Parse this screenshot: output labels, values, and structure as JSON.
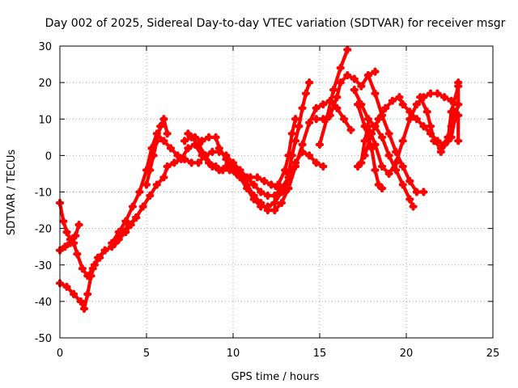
{
  "chart_data": {
    "type": "scatter",
    "title": "Day 002 of 2025, Sidereal Day-to-day VTEC variation (SDTVAR) for receiver msgr",
    "xlabel": "GPS time / hours",
    "ylabel": "SDTVAR / TECUs",
    "xlim": [
      0,
      25
    ],
    "ylim": [
      -50,
      30
    ],
    "x_ticks": [
      "0",
      "5",
      "10",
      "15",
      "20",
      "25"
    ],
    "y_ticks": [
      "-50",
      "-40",
      "-30",
      "-20",
      "-10",
      "0",
      "10",
      "20",
      "30"
    ],
    "grid": true,
    "legend": "none",
    "marker": "plus",
    "color": "#ff0000",
    "series": [
      {
        "points": [
          [
            0.0,
            -13
          ],
          [
            0.2,
            -18
          ],
          [
            0.4,
            -21
          ],
          [
            0.6,
            -23
          ],
          [
            0.8,
            -24
          ],
          [
            1.0,
            -27
          ],
          [
            1.3,
            -31
          ],
          [
            1.6,
            -33
          ],
          [
            1.9,
            -31
          ],
          [
            2.2,
            -28
          ],
          [
            2.6,
            -26
          ],
          [
            3.0,
            -25
          ],
          [
            3.4,
            -23
          ],
          [
            3.8,
            -21
          ],
          [
            4.1,
            -19
          ],
          [
            4.4,
            -17
          ]
        ]
      },
      {
        "points": [
          [
            0.0,
            -26
          ],
          [
            0.3,
            -25
          ],
          [
            0.6,
            -24
          ],
          [
            0.9,
            -22
          ],
          [
            1.1,
            -19
          ]
        ]
      },
      {
        "points": [
          [
            0.0,
            -35
          ],
          [
            0.4,
            -36
          ],
          [
            0.8,
            -38
          ],
          [
            1.2,
            -40
          ],
          [
            1.4,
            -42
          ],
          [
            1.6,
            -38
          ],
          [
            1.8,
            -33
          ],
          [
            2.0,
            -30
          ],
          [
            2.3,
            -28
          ],
          [
            2.6,
            -26
          ]
        ]
      },
      {
        "points": [
          [
            3.0,
            -24
          ],
          [
            3.4,
            -21
          ],
          [
            3.8,
            -18
          ],
          [
            4.2,
            -14
          ],
          [
            4.6,
            -10
          ],
          [
            5.0,
            -4
          ],
          [
            5.3,
            2
          ],
          [
            5.6,
            6
          ],
          [
            6.0,
            4
          ],
          [
            6.4,
            2
          ],
          [
            6.8,
            0
          ],
          [
            7.2,
            -1
          ],
          [
            7.6,
            -2
          ],
          [
            8.0,
            -2
          ],
          [
            8.4,
            0
          ],
          [
            8.8,
            1
          ],
          [
            9.2,
            1
          ],
          [
            9.6,
            0
          ],
          [
            10.0,
            -2
          ],
          [
            10.4,
            -4
          ],
          [
            10.8,
            -6
          ],
          [
            11.2,
            -8
          ],
          [
            11.6,
            -10
          ],
          [
            12.0,
            -11
          ],
          [
            12.4,
            -11
          ],
          [
            12.8,
            -9
          ],
          [
            13.2,
            -6
          ],
          [
            13.6,
            -2
          ],
          [
            14.0,
            1
          ],
          [
            14.4,
            0
          ],
          [
            14.8,
            -2
          ],
          [
            15.2,
            -3
          ]
        ]
      },
      {
        "points": [
          [
            3.2,
            -24
          ],
          [
            3.6,
            -21
          ],
          [
            4.0,
            -19
          ],
          [
            4.4,
            -17
          ],
          [
            4.8,
            -14
          ],
          [
            5.2,
            -11
          ],
          [
            5.6,
            -8
          ],
          [
            6.0,
            -6
          ],
          [
            6.2,
            -3
          ],
          [
            6.6,
            -2
          ],
          [
            7.0,
            -1
          ],
          [
            7.4,
            2
          ],
          [
            7.8,
            3
          ],
          [
            8.2,
            0
          ],
          [
            8.6,
            -2
          ],
          [
            9.0,
            -3
          ],
          [
            9.4,
            -4
          ],
          [
            9.8,
            -4
          ],
          [
            10.2,
            -5
          ],
          [
            10.6,
            -6
          ],
          [
            11.0,
            -6
          ],
          [
            11.4,
            -6
          ],
          [
            11.8,
            -7
          ],
          [
            12.2,
            -8
          ],
          [
            12.6,
            -9
          ],
          [
            13.0,
            -10
          ]
        ]
      },
      {
        "points": [
          [
            5.0,
            -8
          ],
          [
            5.2,
            -4
          ],
          [
            5.4,
            0
          ],
          [
            5.6,
            4
          ],
          [
            5.8,
            8
          ],
          [
            6.0,
            10
          ],
          [
            6.2,
            6
          ]
        ]
      },
      {
        "points": [
          [
            7.2,
            4
          ],
          [
            7.6,
            5
          ],
          [
            8.0,
            3
          ],
          [
            8.4,
            0
          ],
          [
            8.8,
            -3
          ],
          [
            9.2,
            -4
          ],
          [
            9.6,
            -3
          ],
          [
            10.0,
            -3
          ],
          [
            10.4,
            -5
          ],
          [
            10.8,
            -8
          ],
          [
            11.2,
            -11
          ],
          [
            11.6,
            -13
          ],
          [
            12.0,
            -15
          ],
          [
            12.4,
            -15
          ],
          [
            12.8,
            -13
          ],
          [
            13.2,
            -9
          ],
          [
            13.6,
            -3
          ],
          [
            14.0,
            3
          ],
          [
            14.4,
            9
          ],
          [
            14.8,
            13
          ],
          [
            15.2,
            14
          ],
          [
            15.6,
            15
          ],
          [
            16.0,
            13
          ],
          [
            16.4,
            10
          ],
          [
            16.8,
            7
          ]
        ]
      },
      {
        "points": [
          [
            7.4,
            6
          ],
          [
            7.8,
            5
          ],
          [
            8.2,
            4
          ],
          [
            8.6,
            5
          ],
          [
            9.0,
            5
          ],
          [
            9.2,
            2
          ],
          [
            9.6,
            -1
          ],
          [
            10.0,
            -4
          ],
          [
            10.4,
            -6
          ],
          [
            10.8,
            -9
          ],
          [
            11.2,
            -12
          ],
          [
            11.6,
            -14
          ],
          [
            12.0,
            -14
          ],
          [
            12.4,
            -13
          ],
          [
            12.8,
            -10
          ]
        ]
      },
      {
        "points": [
          [
            13.0,
            -10
          ],
          [
            13.2,
            -5
          ],
          [
            13.4,
            0
          ],
          [
            13.6,
            4
          ],
          [
            13.8,
            8
          ],
          [
            14.0,
            13
          ],
          [
            14.2,
            17
          ],
          [
            14.4,
            20
          ]
        ]
      },
      {
        "points": [
          [
            12.6,
            -8
          ],
          [
            13.0,
            -4
          ],
          [
            13.2,
            0
          ],
          [
            13.4,
            6
          ],
          [
            13.6,
            10
          ]
        ]
      },
      {
        "points": [
          [
            15.0,
            3
          ],
          [
            15.4,
            10
          ],
          [
            15.8,
            18
          ],
          [
            16.2,
            24
          ],
          [
            16.6,
            29
          ]
        ]
      },
      {
        "points": [
          [
            14.8,
            10
          ],
          [
            15.2,
            10
          ],
          [
            15.6,
            11
          ],
          [
            16.0,
            16
          ],
          [
            16.2,
            20
          ],
          [
            16.6,
            22
          ],
          [
            17.0,
            21
          ],
          [
            17.4,
            19
          ],
          [
            17.8,
            22
          ],
          [
            18.2,
            23
          ]
        ]
      },
      {
        "points": [
          [
            17.4,
            -2
          ],
          [
            17.6,
            4
          ],
          [
            17.8,
            8
          ],
          [
            18.2,
            3
          ],
          [
            18.6,
            -3
          ],
          [
            19.0,
            -5
          ],
          [
            19.4,
            -2
          ],
          [
            19.8,
            4
          ],
          [
            20.2,
            10
          ],
          [
            20.6,
            14
          ],
          [
            21.0,
            16
          ],
          [
            21.4,
            17
          ],
          [
            21.8,
            17
          ],
          [
            22.2,
            16
          ],
          [
            22.6,
            15
          ],
          [
            23.0,
            14
          ]
        ]
      },
      {
        "points": [
          [
            17.2,
            14
          ],
          [
            17.6,
            8
          ],
          [
            18.0,
            2
          ],
          [
            18.2,
            -4
          ],
          [
            18.4,
            -8
          ],
          [
            18.6,
            -9
          ]
        ]
      },
      {
        "points": [
          [
            17.8,
            22
          ],
          [
            18.2,
            17
          ],
          [
            18.6,
            11
          ],
          [
            19.0,
            6
          ],
          [
            19.4,
            1
          ],
          [
            19.8,
            -3
          ],
          [
            20.2,
            -7
          ],
          [
            20.6,
            -10
          ],
          [
            21.0,
            -10
          ]
        ]
      },
      {
        "points": [
          [
            17.0,
            18
          ],
          [
            17.4,
            14
          ],
          [
            17.8,
            10
          ],
          [
            18.2,
            8
          ],
          [
            18.6,
            5
          ],
          [
            19.0,
            0
          ],
          [
            19.4,
            -4
          ],
          [
            19.8,
            -8
          ],
          [
            20.2,
            -12
          ],
          [
            20.4,
            -14
          ]
        ]
      },
      {
        "points": [
          [
            17.2,
            -3
          ],
          [
            17.6,
            0
          ],
          [
            18.0,
            6
          ],
          [
            18.4,
            10
          ],
          [
            18.8,
            13
          ],
          [
            19.2,
            15
          ],
          [
            19.6,
            16
          ],
          [
            19.8,
            14
          ],
          [
            20.2,
            12
          ],
          [
            20.6,
            10
          ],
          [
            21.0,
            8
          ],
          [
            21.4,
            6
          ],
          [
            21.8,
            4
          ],
          [
            22.2,
            3
          ],
          [
            22.6,
            5
          ],
          [
            22.8,
            10
          ],
          [
            23.0,
            14
          ],
          [
            23.0,
            20
          ]
        ]
      },
      {
        "points": [
          [
            20.8,
            16
          ],
          [
            21.2,
            12
          ],
          [
            21.4,
            8
          ],
          [
            21.6,
            4
          ],
          [
            22.0,
            2
          ],
          [
            22.4,
            4
          ],
          [
            22.6,
            12
          ],
          [
            23.0,
            19
          ]
        ]
      },
      {
        "points": [
          [
            22.0,
            1
          ],
          [
            22.4,
            5
          ],
          [
            22.6,
            8
          ],
          [
            22.8,
            12
          ],
          [
            23.0,
            11
          ],
          [
            23.0,
            4
          ]
        ]
      }
    ]
  }
}
